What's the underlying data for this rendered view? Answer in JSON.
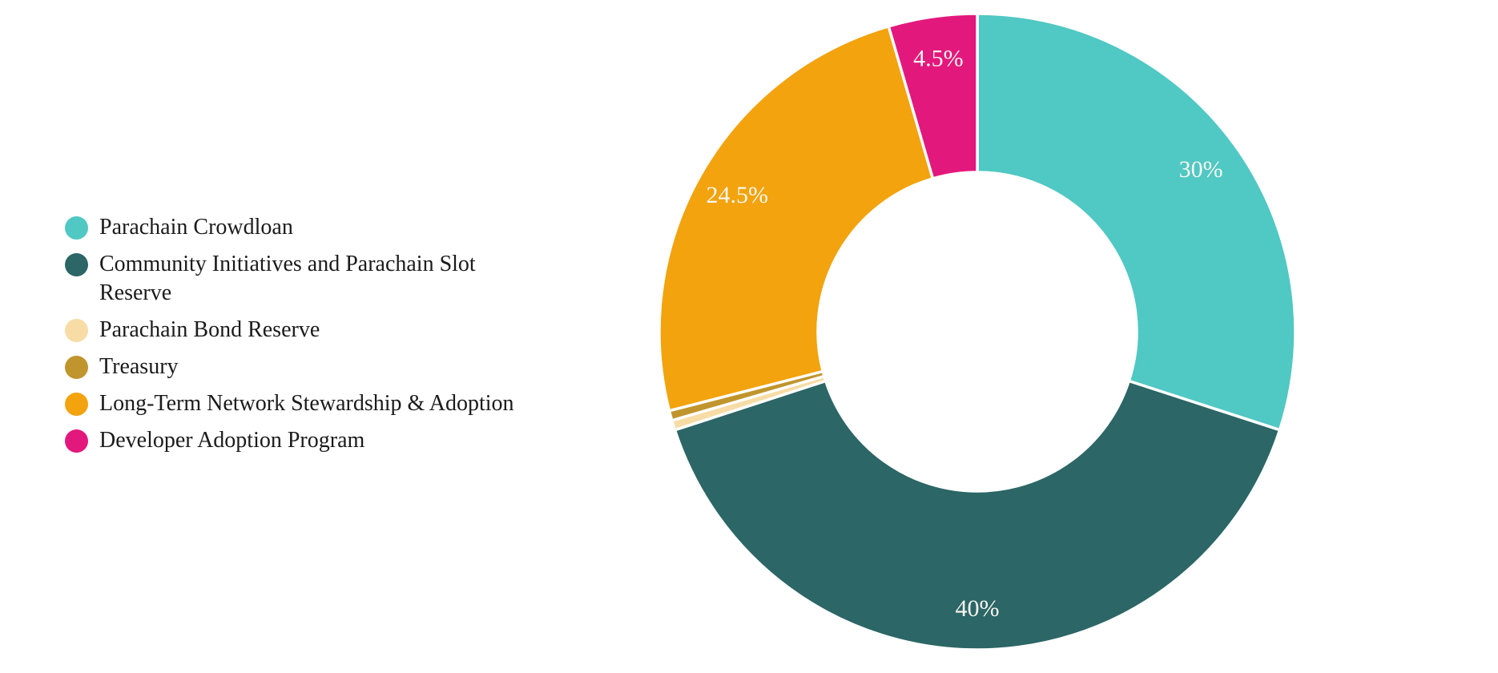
{
  "page": {
    "background_color": "#ffffff"
  },
  "chart_data": {
    "type": "pie",
    "subtype": "donut",
    "title": "",
    "legend_position": "left",
    "start_angle_deg": 0,
    "direction": "clockwise",
    "inner_radius_ratio": 0.5,
    "grid": false,
    "total_percent": 100,
    "slice_gap_color": "#ffffff",
    "slice_label_color": "#faf7f1",
    "slices": [
      {
        "label": "Parachain Crowdloan",
        "value": 30,
        "pct_label": "30%",
        "color": "#50c8c3",
        "pct_label_visible": true,
        "estimated": false
      },
      {
        "label": "Community Initiatives and Parachain Slot Reserve",
        "value": 40,
        "pct_label": "40%",
        "color": "#2c6666",
        "pct_label_visible": true,
        "estimated": false
      },
      {
        "label": "Parachain Bond Reserve",
        "value": 0.5,
        "pct_label": "0.5%",
        "color": "#f7dca6",
        "pct_label_visible": false,
        "estimated": true
      },
      {
        "label": "Treasury",
        "value": 0.5,
        "pct_label": "0.5%",
        "color": "#c0952d",
        "pct_label_visible": false,
        "estimated": true
      },
      {
        "label": "Long-Term Network Stewardship & Adoption",
        "value": 24.5,
        "pct_label": "24.5%",
        "color": "#f2a30d",
        "pct_label_visible": true,
        "estimated": false
      },
      {
        "label": "Developer Adoption Program",
        "value": 4.5,
        "pct_label": "4.5%",
        "color": "#e3187d",
        "pct_label_visible": true,
        "estimated": false
      }
    ]
  }
}
